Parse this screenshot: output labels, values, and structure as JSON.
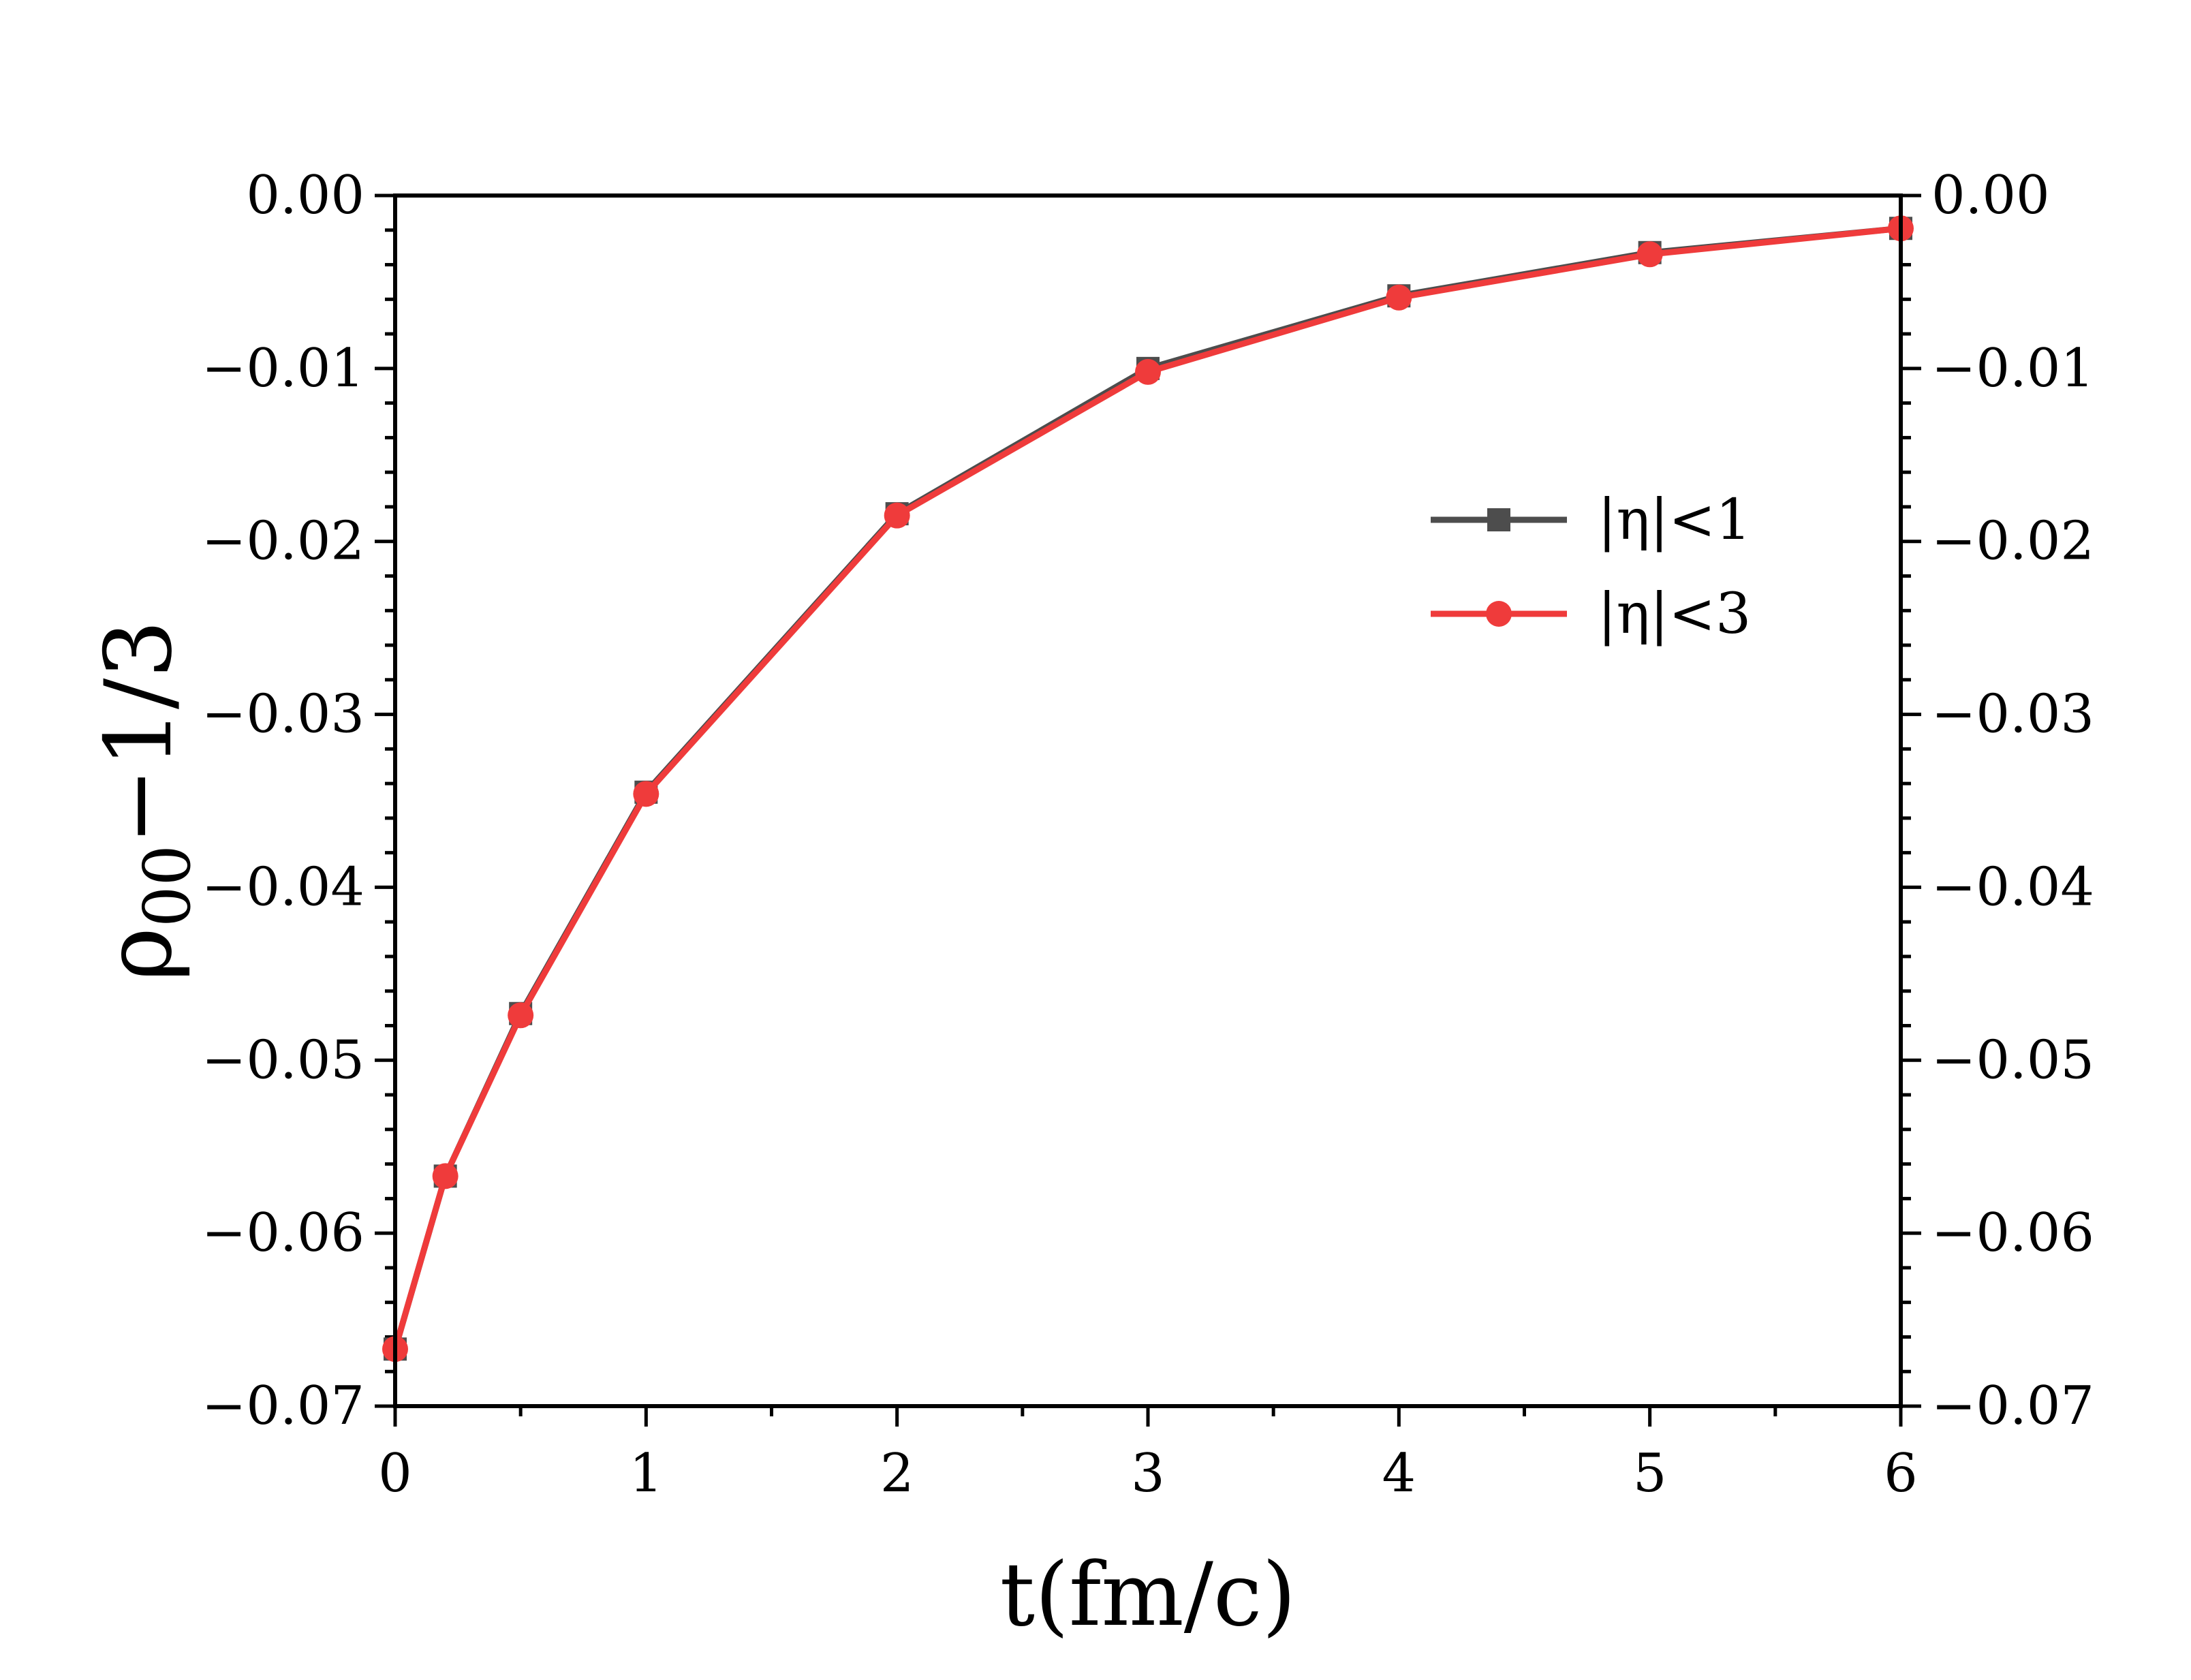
{
  "chart_data": {
    "type": "line",
    "xlabel": "t(fm/c)",
    "ylabel": {
      "base": "ρ",
      "sub": "00",
      "rest": "−1/3"
    },
    "xlim": [
      0,
      6
    ],
    "ylim": [
      -0.07,
      0.0
    ],
    "x_ticks": [
      {
        "value": 0,
        "label": "0"
      },
      {
        "value": 1,
        "label": "1"
      },
      {
        "value": 2,
        "label": "2"
      },
      {
        "value": 3,
        "label": "3"
      },
      {
        "value": 4,
        "label": "4"
      },
      {
        "value": 5,
        "label": "5"
      },
      {
        "value": 6,
        "label": "6"
      }
    ],
    "y_ticks": [
      {
        "value": 0.0,
        "label": "0.00"
      },
      {
        "value": -0.01,
        "label": "−0.01"
      },
      {
        "value": -0.02,
        "label": "−0.02"
      },
      {
        "value": -0.03,
        "label": "−0.03"
      },
      {
        "value": -0.04,
        "label": "−0.04"
      },
      {
        "value": -0.05,
        "label": "−0.05"
      },
      {
        "value": -0.06,
        "label": "−0.06"
      },
      {
        "value": -0.07,
        "label": "−0.07"
      }
    ],
    "right_axis_mirrors_left": true,
    "grid": false,
    "legend_position": "upper-right",
    "x": [
      0,
      0.2,
      0.5,
      1,
      2,
      3,
      4,
      5,
      6
    ],
    "series": [
      {
        "name": "|η|<1",
        "marker": "square",
        "color": "#4d4d4d",
        "values": [
          -0.0667,
          -0.0567,
          -0.0473,
          -0.0345,
          -0.0184,
          -0.01,
          -0.0058,
          -0.0033,
          -0.0019
        ]
      },
      {
        "name": "|η|<3",
        "marker": "circle",
        "color": "#ef3b3b",
        "values": [
          -0.0667,
          -0.0567,
          -0.0474,
          -0.0346,
          -0.0185,
          -0.0102,
          -0.0059,
          -0.0034,
          -0.0019
        ]
      }
    ]
  }
}
